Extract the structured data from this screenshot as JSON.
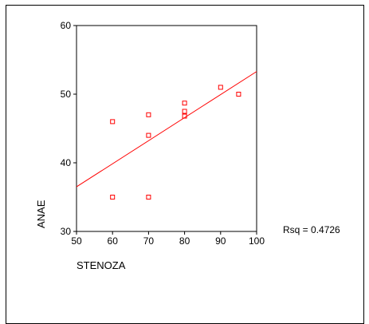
{
  "chart_data": {
    "type": "scatter",
    "xlabel": "STENOZA",
    "ylabel": "ANAE",
    "xlim": [
      50,
      100
    ],
    "ylim": [
      30,
      60
    ],
    "x_ticks": [
      50,
      60,
      70,
      80,
      90,
      100
    ],
    "y_ticks": [
      30,
      40,
      50,
      60
    ],
    "grid": false,
    "points": [
      {
        "x": 60,
        "y": 46
      },
      {
        "x": 60,
        "y": 35
      },
      {
        "x": 70,
        "y": 47
      },
      {
        "x": 70,
        "y": 44
      },
      {
        "x": 70,
        "y": 35
      },
      {
        "x": 80,
        "y": 48.7
      },
      {
        "x": 80,
        "y": 47.5
      },
      {
        "x": 80,
        "y": 46.8
      },
      {
        "x": 90,
        "y": 51
      },
      {
        "x": 95,
        "y": 50
      }
    ],
    "fit_line": {
      "x": [
        50,
        100
      ],
      "y": [
        36.5,
        53.3
      ]
    },
    "annotation": "Rsq = 0.4726",
    "colors": {
      "marker": "#ff0000",
      "line": "#ff0000",
      "axis": "#000000"
    }
  }
}
